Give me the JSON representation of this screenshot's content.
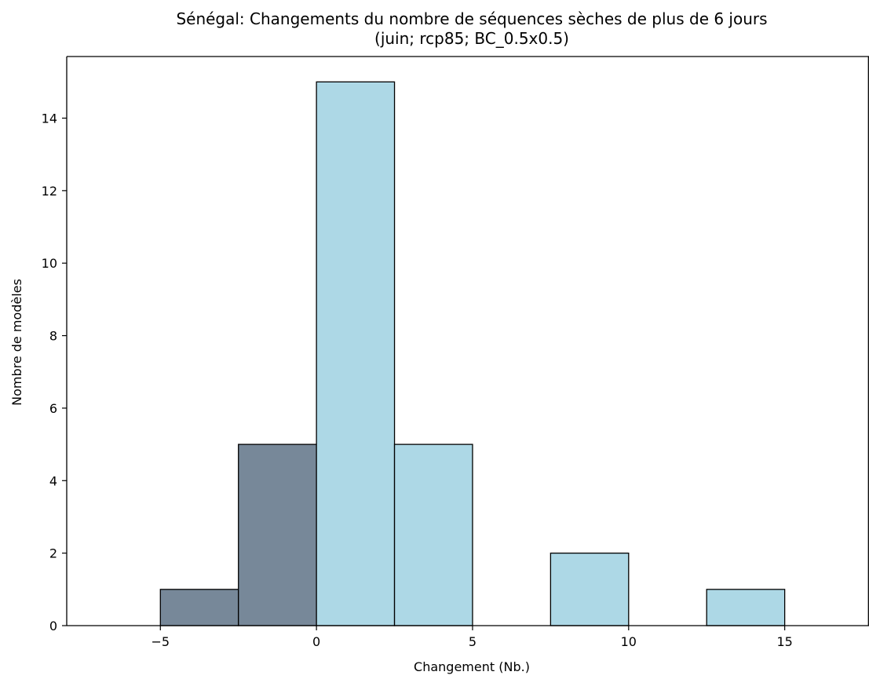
{
  "chart_data": {
    "type": "bar",
    "subtype": "histogram",
    "title": "Sénégal: Changements du nombre de séquences sèches de plus de 6 jours",
    "subtitle": "(juin; rcp85; BC_0.5x0.5)",
    "xlabel": "Changement (Nb.)",
    "ylabel": "Nombre de modèles",
    "xlim": [
      -8,
      17.7
    ],
    "ylim": [
      0,
      15.7
    ],
    "x_ticks": [
      -5,
      0,
      5,
      10,
      15
    ],
    "y_ticks": [
      0,
      2,
      4,
      6,
      8,
      10,
      12,
      14
    ],
    "bins": [
      {
        "x0": -5,
        "x1": -2.5,
        "value": 1,
        "color": "#778899"
      },
      {
        "x0": -2.5,
        "x1": 0,
        "value": 5,
        "color": "#778899"
      },
      {
        "x0": 0,
        "x1": 2.5,
        "value": 15,
        "color": "#add8e6"
      },
      {
        "x0": 2.5,
        "x1": 5,
        "value": 5,
        "color": "#add8e6"
      },
      {
        "x0": 7.5,
        "x1": 10,
        "value": 2,
        "color": "#add8e6"
      },
      {
        "x0": 12.5,
        "x1": 15,
        "value": 1,
        "color": "#add8e6"
      }
    ],
    "negative_color": "#778899",
    "positive_color": "#add8e6",
    "grid": false,
    "legend": "none"
  }
}
